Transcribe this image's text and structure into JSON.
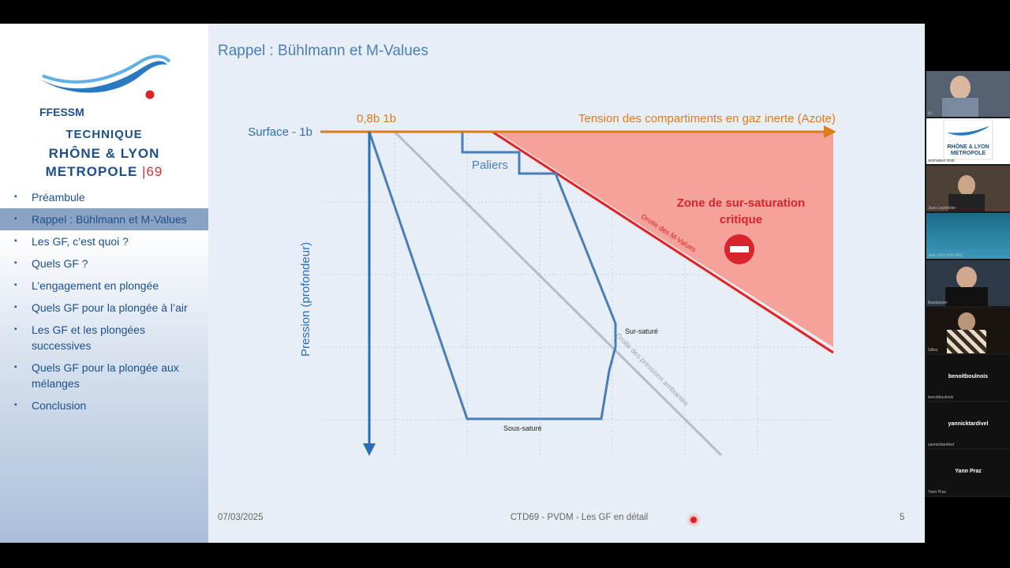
{
  "logo": {
    "org": "FFESSM",
    "line1": "TECHNIQUE",
    "line2": "RHÔNE & LYON",
    "line3": "METROPOLE",
    "line3_num": "69"
  },
  "menu": [
    {
      "label": "Préambule",
      "active": false
    },
    {
      "label": "Rappel : Bühlmann et M-Values",
      "active": true
    },
    {
      "label": "Les GF, c’est quoi ?",
      "active": false
    },
    {
      "label": "Quels GF ?",
      "active": false
    },
    {
      "label": "L’engagement en plongée",
      "active": false
    },
    {
      "label": "Quels GF pour la plongée à l’air",
      "active": false
    },
    {
      "label": "Les GF et les plongées successives",
      "active": false
    },
    {
      "label": "Quels GF pour la plongée aux mélanges",
      "active": false
    },
    {
      "label": "Conclusion",
      "active": false
    }
  ],
  "slide": {
    "title": "Rappel : Bühlmann et M-Values",
    "date": "07/03/2025",
    "footer_center": "CTD69 - PVDM - Les GF en détail",
    "page": "5"
  },
  "diagram": {
    "surface_label": "Surface - 1b",
    "top_labels": "0,8b 1b",
    "x_axis_label": "Tension des compartiments en gaz inerte (Azote)",
    "y_axis_label": "Pression (profondeur)",
    "paliers": "Paliers",
    "zone_line1": "Zone de sur-saturation",
    "zone_line2": "critique",
    "m_values_line": "Droite des M-Values",
    "ambient_line": "Droite des pressions ambiantes",
    "sur_sature": "Sur-saturé",
    "sous_sature": "Sous-saturé"
  },
  "colors": {
    "orange": "#e07b1a",
    "blue": "#4a7eb8",
    "red": "#d9232d",
    "zone": "#f4a29a"
  },
  "participants": [
    {
      "name": "jnl",
      "type": "video"
    },
    {
      "name": "animateur visio",
      "type": "logo"
    },
    {
      "name": "Jean Lepelletier",
      "type": "video"
    },
    {
      "name": "Jean-Michel BLANC",
      "type": "video"
    },
    {
      "name": "lbardassier",
      "type": "video"
    },
    {
      "name": "Gilles",
      "type": "video"
    },
    {
      "name": "benoitboulnois",
      "type": "name"
    },
    {
      "name": "yannicktardivel",
      "type": "name"
    },
    {
      "name": "Yann Praz",
      "type": "name"
    }
  ]
}
